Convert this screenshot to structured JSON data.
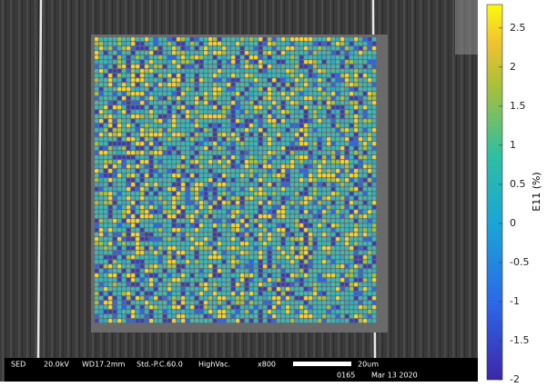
{
  "colorbar": {
    "label": "E11 (%)",
    "lim": [
      -2,
      2.8
    ],
    "ticks": [
      2.5,
      2,
      1.5,
      1,
      0.5,
      0,
      -0.5,
      -1,
      -1.5,
      -2
    ]
  },
  "info_bar": {
    "detector": "SED",
    "voltage": "20.0kV",
    "working_distance": "WD17.2mm",
    "probe_current": "Std.-P.C.60.0",
    "vacuum": "HighVac.",
    "magnification": "x800",
    "scale": "20um",
    "image_number": "0165",
    "date": "Mar 13 2020"
  }
}
